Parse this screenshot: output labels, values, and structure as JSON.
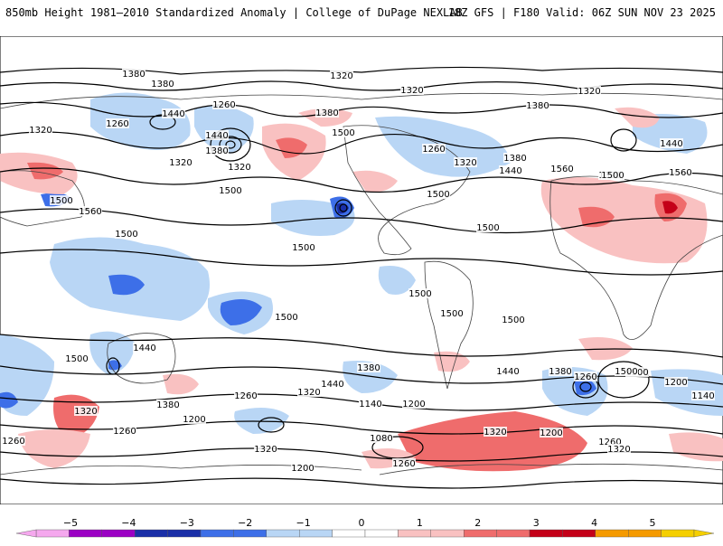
{
  "header": {
    "title": "850mb Height 1981–2010 Standardized Anomaly | College of DuPage NEXLAB",
    "run_info": "18Z GFS | F180 Valid: 06Z SUN NOV 23 2025"
  },
  "legend": {
    "ticks": [
      "−5",
      "−4",
      "−3",
      "−2",
      "−1",
      "0",
      "1",
      "2",
      "3",
      "4",
      "5"
    ],
    "colors": [
      "#f5a8ee",
      "#9b00c4",
      "#1a2fa8",
      "#3d6fe8",
      "#b9d6f5",
      "#ffffff",
      "#f9c1c1",
      "#ef6c6c",
      "#c40018",
      "#f59a00",
      "#f5cf00"
    ]
  },
  "contour_labels": [
    "1380",
    "1320",
    "1380",
    "1320",
    "1260",
    "1440",
    "1260",
    "1320",
    "1380",
    "1320",
    "1320",
    "1260",
    "1380",
    "1320",
    "1440",
    "1500",
    "1380",
    "1320",
    "1380",
    "1440",
    "1440",
    "1320",
    "1500",
    "1560",
    "1500",
    "1560",
    "1500",
    "1560",
    "1500",
    "1500",
    "1500",
    "1500",
    "1500",
    "1500",
    "1500",
    "1500",
    "1440",
    "1500",
    "1500",
    "1440",
    "1380",
    "1320",
    "1440",
    "1380",
    "1260",
    "1500",
    "1200",
    "1140",
    "1380",
    "1260",
    "1320",
    "1200",
    "1140",
    "1200",
    "1260",
    "1320",
    "1140",
    "1080",
    "1200",
    "1260",
    "1260",
    "1320",
    "1200",
    "1260",
    "1320"
  ]
}
